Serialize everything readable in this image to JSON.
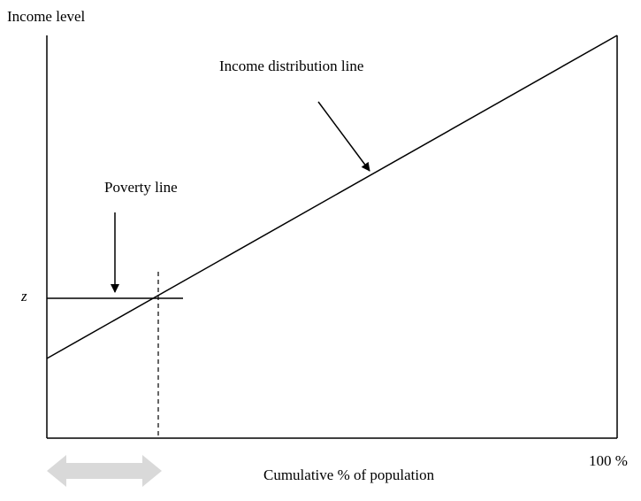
{
  "y_axis_label": "Income level",
  "distribution_label": "Income distribution line",
  "poverty_label": "Poverty line",
  "poverty_symbol": "z",
  "x_axis_label": "Cumulative % of population",
  "x_axis_end_label": "100 %"
}
